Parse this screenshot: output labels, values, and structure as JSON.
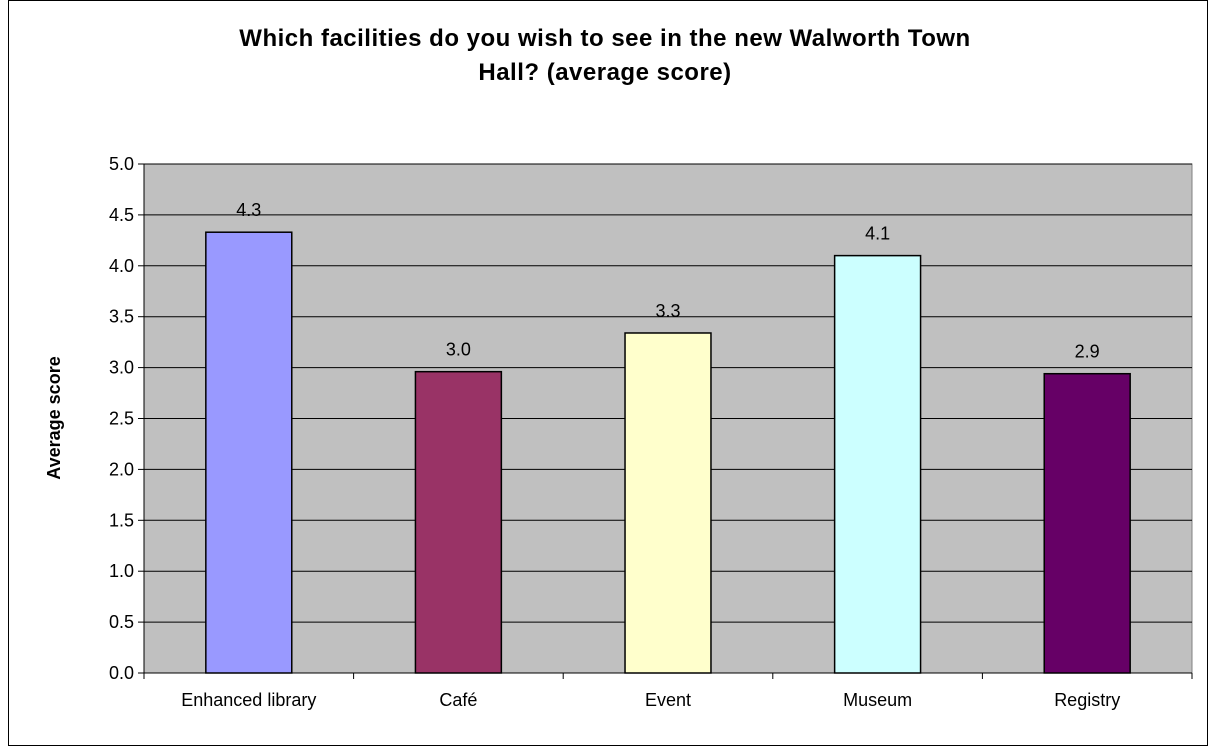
{
  "chart_data": {
    "type": "bar",
    "title_line1": "Which facilities do you wish to see in the new Walworth Town",
    "title_line2": "Hall? (average score)",
    "xlabel": "",
    "ylabel": "Average score",
    "categories": [
      "Enhanced library",
      "Café",
      "Event",
      "Museum",
      "Registry"
    ],
    "values": [
      4.33,
      2.96,
      3.34,
      4.1,
      2.94
    ],
    "data_labels": [
      "4.3",
      "3.0",
      "3.3",
      "4.1",
      "2.9"
    ],
    "bar_colors": [
      "#9999FF",
      "#993366",
      "#FFFFCC",
      "#CCFFFF",
      "#660066"
    ],
    "ylim": [
      0,
      5
    ],
    "yticks": [
      0,
      0.5,
      1,
      1.5,
      2,
      2.5,
      3,
      3.5,
      4,
      4.5,
      5
    ],
    "ytick_labels": [
      "0.0",
      "0.5",
      "1.0",
      "1.5",
      "2.0",
      "2.5",
      "3.0",
      "3.5",
      "4.0",
      "4.5",
      "5.0"
    ],
    "grid": true,
    "plot_background": "#C0C0C0",
    "legend": "none"
  }
}
